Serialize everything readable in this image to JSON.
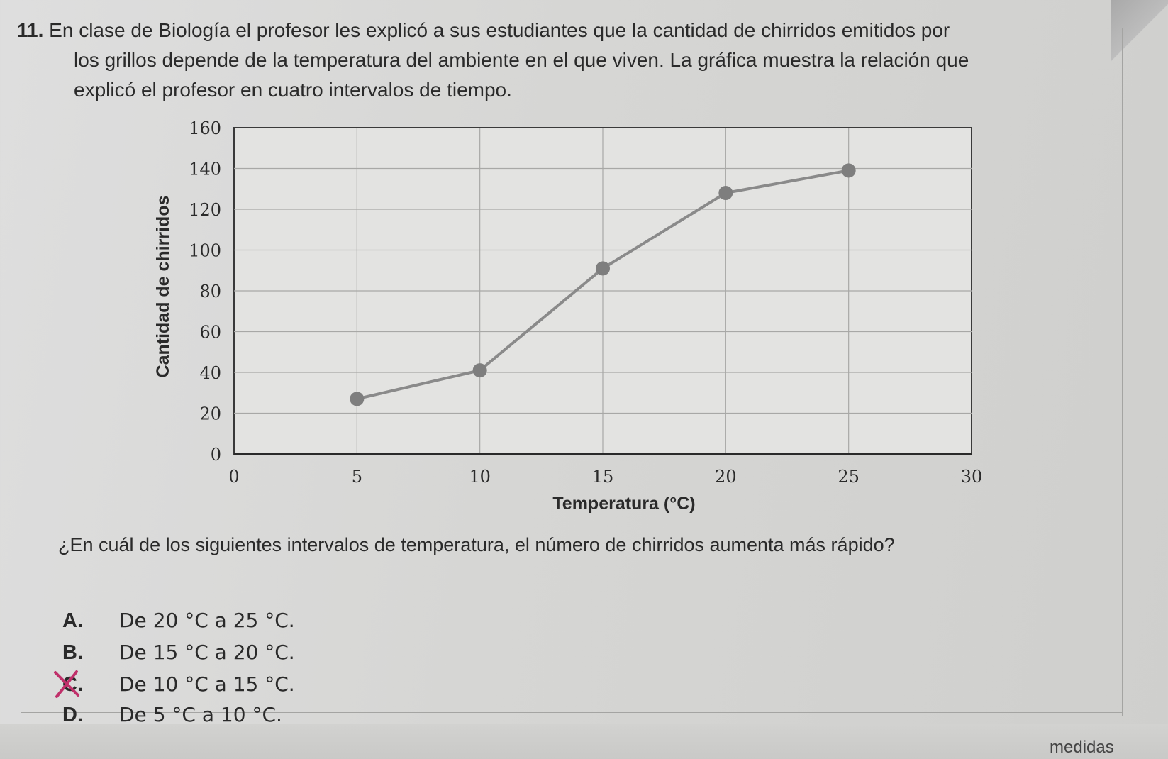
{
  "question": {
    "number": "11.",
    "lines": [
      "En clase de Biología el profesor les explicó a sus estudiantes que la cantidad de chirridos emitidos por",
      "los grillos depende de la temperatura del ambiente en el que viven. La gráfica muestra la relación que",
      "explicó el profesor en cuatro intervalos de tiempo."
    ]
  },
  "chart_data": {
    "type": "line",
    "x": [
      5,
      10,
      15,
      20,
      25
    ],
    "y": [
      27,
      41,
      91,
      128,
      139
    ],
    "xlabel": "Temperatura (°C)",
    "ylabel": "Cantidad de chirridos",
    "xlim": [
      0,
      30
    ],
    "ylim": [
      0,
      160
    ],
    "xticks": [
      0,
      5,
      10,
      15,
      20,
      25,
      30
    ],
    "yticks": [
      0,
      20,
      40,
      60,
      80,
      100,
      120,
      140,
      160
    ],
    "grid": true,
    "line_color": "#8a8a8a",
    "marker_color": "#7e7e7e"
  },
  "prompt": "¿En cuál de los siguientes intervalos de temperatura, el número de chirridos aumenta más rápido?",
  "options": [
    {
      "letter": "A.",
      "text": "De 20 °C a 25 °C."
    },
    {
      "letter": "B.",
      "text": "De 15 °C a 20 °C."
    },
    {
      "letter": "C.",
      "text": "De 10 °C a 15 °C."
    },
    {
      "letter": "D.",
      "text": "De 5 °C a 10 °C."
    }
  ],
  "footer_fragment": "medidas",
  "colors": {
    "ink": "#2a2a2a",
    "mark": "#c0306a"
  }
}
